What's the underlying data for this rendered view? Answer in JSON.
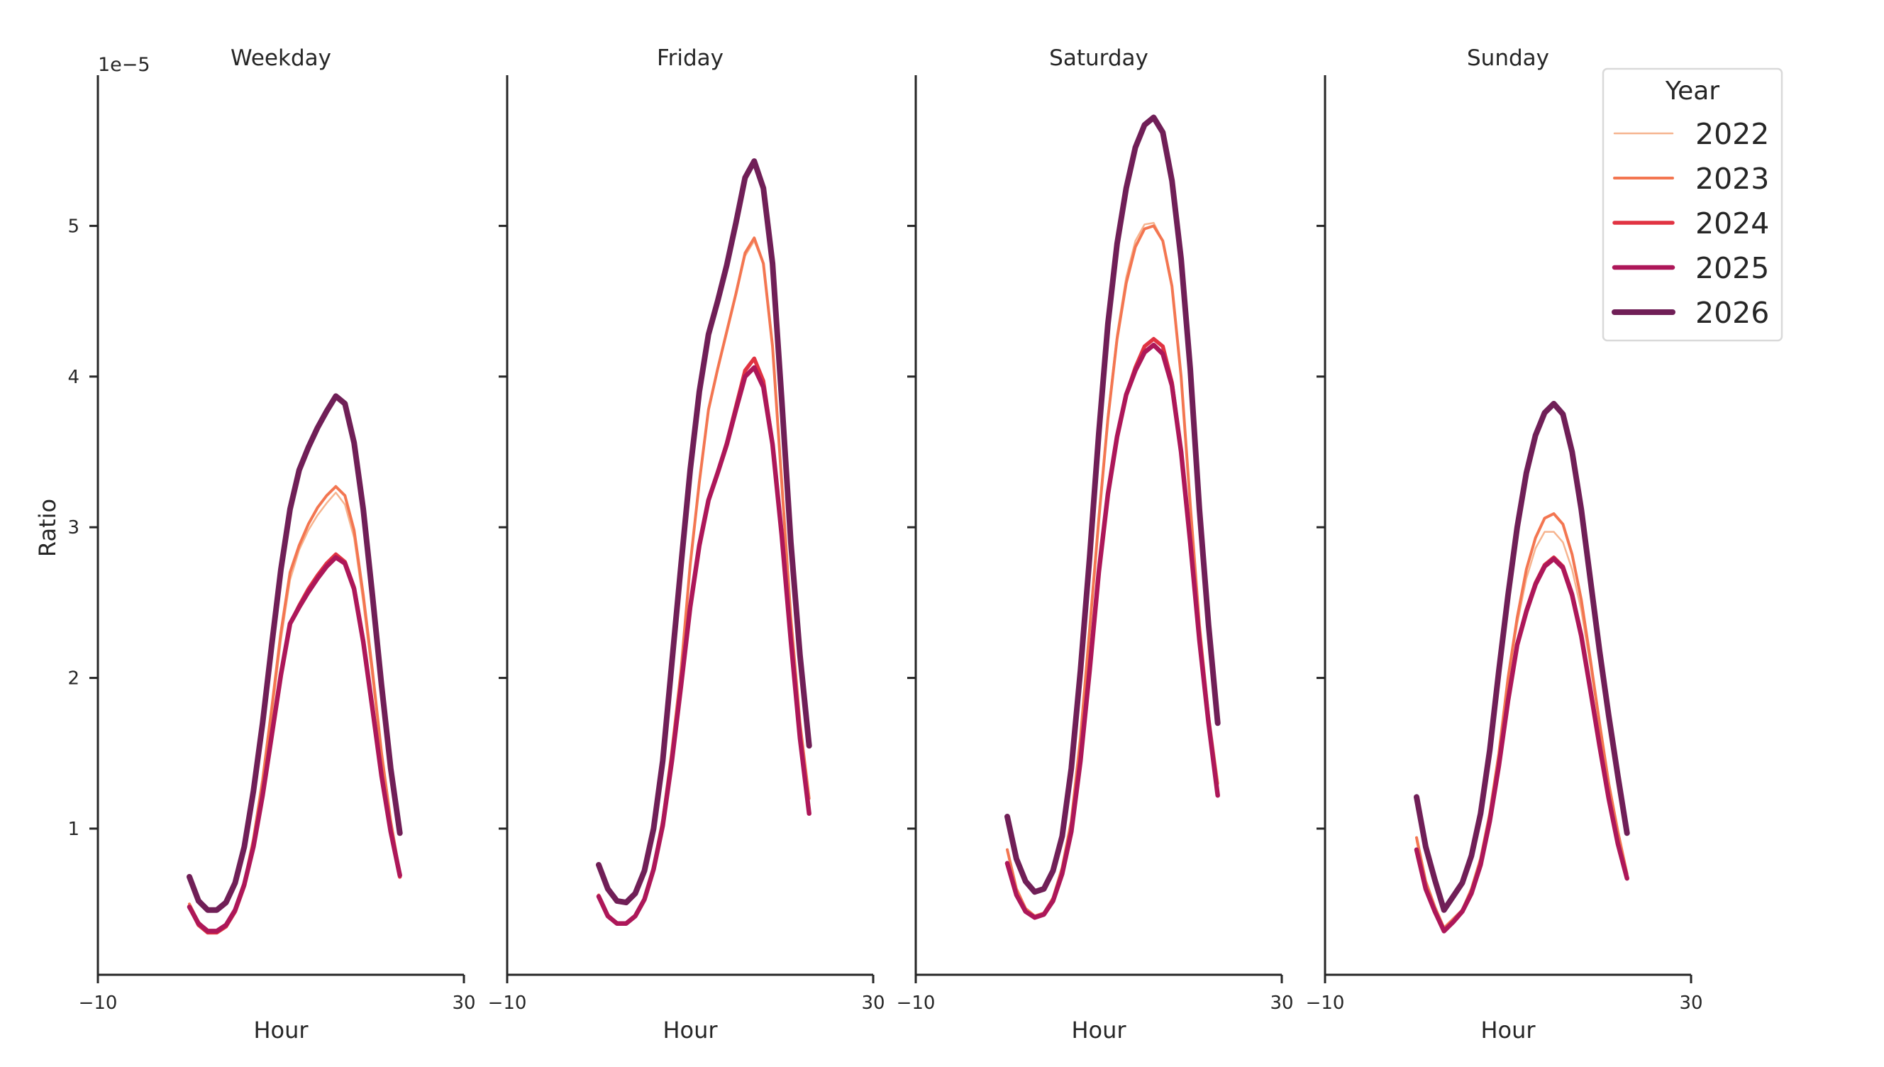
{
  "chart_data": {
    "type": "line",
    "ylabel": "Ratio",
    "xlabel": "Hour",
    "y_scale_label": "1e−5",
    "xlim": [
      -10,
      30
    ],
    "ylim": [
      0.03,
      6.0
    ],
    "xticks": [
      -10,
      30
    ],
    "yticks": [
      1,
      2,
      3,
      4,
      5
    ],
    "grid": false,
    "legend": {
      "title": "Year",
      "placement": "top-right"
    },
    "colors": {
      "2022": "#f6b48f",
      "2023": "#f37651",
      "2024": "#e13342",
      "2025": "#ad1759",
      "2026": "#701f57"
    },
    "x": [
      0,
      1,
      2,
      3,
      4,
      5,
      6,
      7,
      8,
      9,
      10,
      11,
      12,
      13,
      14,
      15,
      16,
      17,
      18,
      19,
      20,
      21,
      22,
      23
    ],
    "panels": [
      {
        "title": "Weekday",
        "series": [
          {
            "name": "2022",
            "values": [
              0.5,
              0.38,
              0.32,
              0.32,
              0.36,
              0.46,
              0.64,
              0.92,
              1.3,
              1.75,
              2.25,
              2.65,
              2.85,
              2.98,
              3.08,
              3.16,
              3.23,
              3.15,
              2.93,
              2.5,
              2.0,
              1.48,
              1.05,
              0.72
            ]
          },
          {
            "name": "2023",
            "values": [
              0.5,
              0.38,
              0.32,
              0.32,
              0.36,
              0.46,
              0.64,
              0.93,
              1.32,
              1.8,
              2.3,
              2.7,
              2.88,
              3.02,
              3.13,
              3.21,
              3.27,
              3.21,
              2.98,
              2.55,
              2.05,
              1.5,
              1.05,
              0.7
            ]
          },
          {
            "name": "2024",
            "values": [
              0.48,
              0.36,
              0.31,
              0.31,
              0.35,
              0.45,
              0.62,
              0.88,
              1.22,
              1.62,
              2.02,
              2.36,
              2.48,
              2.59,
              2.68,
              2.76,
              2.82,
              2.77,
              2.6,
              2.25,
              1.8,
              1.35,
              0.98,
              0.68
            ]
          },
          {
            "name": "2025",
            "values": [
              0.48,
              0.37,
              0.32,
              0.32,
              0.36,
              0.46,
              0.63,
              0.88,
              1.22,
              1.62,
              2.02,
              2.36,
              2.47,
              2.57,
              2.66,
              2.74,
              2.8,
              2.76,
              2.59,
              2.24,
              1.8,
              1.35,
              0.98,
              0.69
            ]
          },
          {
            "name": "2026",
            "values": [
              0.68,
              0.52,
              0.46,
              0.46,
              0.51,
              0.64,
              0.88,
              1.25,
              1.7,
              2.22,
              2.72,
              3.12,
              3.38,
              3.53,
              3.66,
              3.77,
              3.87,
              3.82,
              3.56,
              3.12,
              2.55,
              1.95,
              1.4,
              0.97
            ]
          }
        ]
      },
      {
        "title": "Friday",
        "series": [
          {
            "name": "2022",
            "values": [
              0.56,
              0.43,
              0.37,
              0.37,
              0.42,
              0.54,
              0.75,
              1.06,
              1.52,
              2.05,
              2.75,
              3.3,
              3.78,
              4.05,
              4.3,
              4.55,
              4.8,
              4.9,
              4.75,
              4.2,
              3.3,
              2.4,
              1.7,
              1.22
            ]
          },
          {
            "name": "2023",
            "values": [
              0.56,
              0.43,
              0.37,
              0.37,
              0.42,
              0.54,
              0.75,
              1.06,
              1.52,
              2.05,
              2.75,
              3.3,
              3.78,
              4.05,
              4.3,
              4.55,
              4.82,
              4.92,
              4.75,
              4.2,
              3.3,
              2.4,
              1.7,
              1.2
            ]
          },
          {
            "name": "2024",
            "values": [
              0.55,
              0.42,
              0.37,
              0.37,
              0.42,
              0.53,
              0.73,
              1.02,
              1.45,
              1.95,
              2.47,
              2.88,
              3.18,
              3.36,
              3.56,
              3.8,
              4.04,
              4.12,
              3.97,
              3.55,
              2.95,
              2.25,
              1.6,
              1.1
            ]
          },
          {
            "name": "2025",
            "values": [
              0.55,
              0.42,
              0.37,
              0.37,
              0.42,
              0.53,
              0.73,
              1.02,
              1.45,
              1.95,
              2.47,
              2.88,
              3.18,
              3.36,
              3.55,
              3.78,
              4.0,
              4.06,
              3.93,
              3.55,
              2.95,
              2.25,
              1.6,
              1.1
            ]
          },
          {
            "name": "2026",
            "values": [
              0.76,
              0.6,
              0.52,
              0.51,
              0.57,
              0.72,
              1.0,
              1.45,
              2.1,
              2.75,
              3.38,
              3.9,
              4.28,
              4.5,
              4.74,
              5.02,
              5.32,
              5.43,
              5.25,
              4.75,
              3.85,
              2.9,
              2.15,
              1.55
            ]
          }
        ]
      },
      {
        "title": "Saturday",
        "series": [
          {
            "name": "2022",
            "values": [
              0.86,
              0.6,
              0.47,
              0.42,
              0.44,
              0.54,
              0.74,
              1.05,
              1.62,
              2.35,
              3.08,
              3.75,
              4.28,
              4.66,
              4.9,
              5.01,
              5.02,
              4.9,
              4.6,
              4.0,
              3.15,
              2.35,
              1.75,
              1.32
            ]
          },
          {
            "name": "2023",
            "values": [
              0.86,
              0.6,
              0.47,
              0.42,
              0.44,
              0.54,
              0.74,
              1.05,
              1.6,
              2.32,
              3.05,
              3.72,
              4.25,
              4.62,
              4.86,
              4.98,
              5.0,
              4.9,
              4.6,
              4.0,
              3.15,
              2.35,
              1.75,
              1.3
            ]
          },
          {
            "name": "2024",
            "values": [
              0.77,
              0.56,
              0.45,
              0.41,
              0.43,
              0.52,
              0.7,
              0.98,
              1.45,
              2.05,
              2.7,
              3.22,
              3.6,
              3.88,
              4.06,
              4.2,
              4.25,
              4.2,
              3.96,
              3.5,
              2.9,
              2.25,
              1.7,
              1.22
            ]
          },
          {
            "name": "2025",
            "values": [
              0.77,
              0.56,
              0.45,
              0.41,
              0.43,
              0.52,
              0.7,
              0.98,
              1.45,
              2.05,
              2.7,
              3.22,
              3.6,
              3.88,
              4.04,
              4.16,
              4.21,
              4.15,
              3.94,
              3.5,
              2.9,
              2.25,
              1.7,
              1.22
            ]
          },
          {
            "name": "2026",
            "values": [
              1.08,
              0.8,
              0.65,
              0.58,
              0.6,
              0.72,
              0.95,
              1.4,
              2.05,
              2.8,
              3.62,
              4.35,
              4.88,
              5.25,
              5.52,
              5.67,
              5.72,
              5.62,
              5.3,
              4.78,
              4.05,
              3.12,
              2.35,
              1.7
            ]
          }
        ]
      },
      {
        "title": "Sunday",
        "series": [
          {
            "name": "2022",
            "values": [
              0.92,
              0.64,
              0.48,
              0.34,
              0.4,
              0.46,
              0.6,
              0.8,
              1.1,
              1.5,
              1.98,
              2.36,
              2.66,
              2.86,
              2.97,
              2.97,
              2.9,
              2.72,
              2.45,
              2.08,
              1.68,
              1.3,
              0.98,
              0.71
            ]
          },
          {
            "name": "2023",
            "values": [
              0.94,
              0.65,
              0.48,
              0.34,
              0.4,
              0.46,
              0.6,
              0.8,
              1.1,
              1.5,
              2.0,
              2.4,
              2.72,
              2.93,
              3.06,
              3.09,
              3.02,
              2.82,
              2.52,
              2.12,
              1.7,
              1.3,
              0.98,
              0.7
            ]
          },
          {
            "name": "2024",
            "values": [
              0.86,
              0.6,
              0.45,
              0.32,
              0.38,
              0.45,
              0.57,
              0.76,
              1.05,
              1.42,
              1.85,
              2.22,
              2.45,
              2.63,
              2.75,
              2.8,
              2.74,
              2.56,
              2.28,
              1.92,
              1.55,
              1.2,
              0.9,
              0.67
            ]
          },
          {
            "name": "2025",
            "values": [
              0.86,
              0.6,
              0.45,
              0.32,
              0.38,
              0.45,
              0.57,
              0.76,
              1.05,
              1.42,
              1.85,
              2.22,
              2.44,
              2.62,
              2.74,
              2.79,
              2.73,
              2.55,
              2.28,
              1.92,
              1.55,
              1.2,
              0.9,
              0.67
            ]
          },
          {
            "name": "2026",
            "values": [
              1.21,
              0.88,
              0.66,
              0.46,
              0.55,
              0.64,
              0.82,
              1.1,
              1.52,
              2.05,
              2.55,
              3.0,
              3.36,
              3.61,
              3.76,
              3.82,
              3.75,
              3.5,
              3.12,
              2.65,
              2.18,
              1.75,
              1.35,
              0.97
            ]
          }
        ]
      }
    ]
  }
}
